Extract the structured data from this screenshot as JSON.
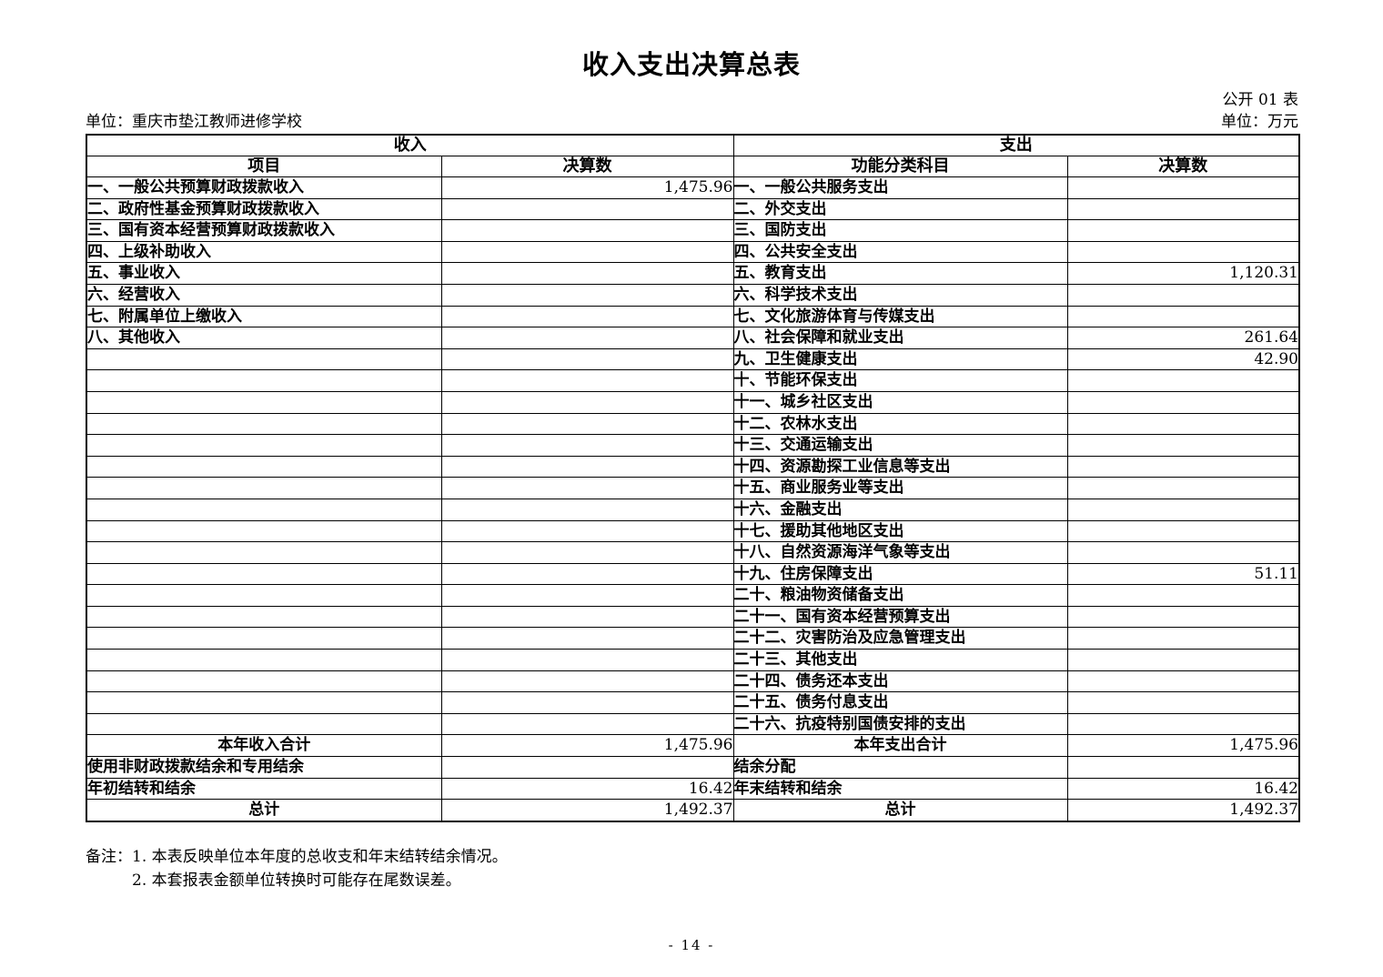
{
  "page": {
    "title": "收入支出决算总表",
    "doc_label": "公开 01 表",
    "unit_name": "单位：重庆市垫江教师进修学校",
    "unit_money": "单位：万元",
    "page_number": "- 14 -"
  },
  "table": {
    "income_header": "收入",
    "expense_header": "支出",
    "col_headers": {
      "item": "项目",
      "amount": "决算数",
      "func": "功能分类科目",
      "amount2": "决算数"
    },
    "body_row_count": 26,
    "income_rows": [
      {
        "label": "一、一般公共预算财政拨款收入",
        "value": "1,475.96"
      },
      {
        "label": "二、政府性基金预算财政拨款收入",
        "value": ""
      },
      {
        "label": "三、国有资本经营预算财政拨款收入",
        "value": ""
      },
      {
        "label": "四、上级补助收入",
        "value": ""
      },
      {
        "label": "五、事业收入",
        "value": ""
      },
      {
        "label": "六、经营收入",
        "value": ""
      },
      {
        "label": "七、附属单位上缴收入",
        "value": ""
      },
      {
        "label": "八、其他收入",
        "value": ""
      }
    ],
    "expense_rows": [
      {
        "label": "一、一般公共服务支出",
        "value": ""
      },
      {
        "label": "二、外交支出",
        "value": ""
      },
      {
        "label": "三、国防支出",
        "value": ""
      },
      {
        "label": "四、公共安全支出",
        "value": ""
      },
      {
        "label": "五、教育支出",
        "value": "1,120.31"
      },
      {
        "label": "六、科学技术支出",
        "value": ""
      },
      {
        "label": "七、文化旅游体育与传媒支出",
        "value": ""
      },
      {
        "label": "八、社会保障和就业支出",
        "value": "261.64"
      },
      {
        "label": "九、卫生健康支出",
        "value": "42.90"
      },
      {
        "label": "十、节能环保支出",
        "value": ""
      },
      {
        "label": "十一、城乡社区支出",
        "value": ""
      },
      {
        "label": "十二、农林水支出",
        "value": ""
      },
      {
        "label": "十三、交通运输支出",
        "value": ""
      },
      {
        "label": "十四、资源勘探工业信息等支出",
        "value": ""
      },
      {
        "label": "十五、商业服务业等支出",
        "value": ""
      },
      {
        "label": "十六、金融支出",
        "value": ""
      },
      {
        "label": "十七、援助其他地区支出",
        "value": ""
      },
      {
        "label": "十八、自然资源海洋气象等支出",
        "value": ""
      },
      {
        "label": "十九、住房保障支出",
        "value": "51.11"
      },
      {
        "label": "二十、粮油物资储备支出",
        "value": ""
      },
      {
        "label": "二十一、国有资本经营预算支出",
        "value": ""
      },
      {
        "label": "二十二、灾害防治及应急管理支出",
        "value": ""
      },
      {
        "label": "二十三、其他支出",
        "value": ""
      },
      {
        "label": "二十四、债务还本支出",
        "value": ""
      },
      {
        "label": "二十五、债务付息支出",
        "value": ""
      },
      {
        "label": "二十六、抗疫特别国债安排的支出",
        "value": ""
      }
    ],
    "footer_rows": [
      {
        "income_label": "本年收入合计",
        "income_value": "1,475.96",
        "income_center": true,
        "expense_label": "本年支出合计",
        "expense_value": "1,475.96",
        "expense_center": true
      },
      {
        "income_label": "使用非财政拨款结余和专用结余",
        "income_value": "",
        "income_center": false,
        "expense_label": "结余分配",
        "expense_value": "",
        "expense_center": false
      },
      {
        "income_label": "年初结转和结余",
        "income_value": "16.42",
        "income_center": false,
        "expense_label": "年末结转和结余",
        "expense_value": "16.42",
        "expense_center": false
      },
      {
        "income_label": "总计",
        "income_value": "1,492.37",
        "income_center": true,
        "expense_label": "总计",
        "expense_value": "1,492.37",
        "expense_center": true
      }
    ]
  },
  "notes": {
    "prefix": "备注：",
    "items": [
      "1. 本表反映单位本年度的总收支和年末结转结余情况。",
      "2. 本套报表金额单位转换时可能存在尾数误差。"
    ]
  }
}
